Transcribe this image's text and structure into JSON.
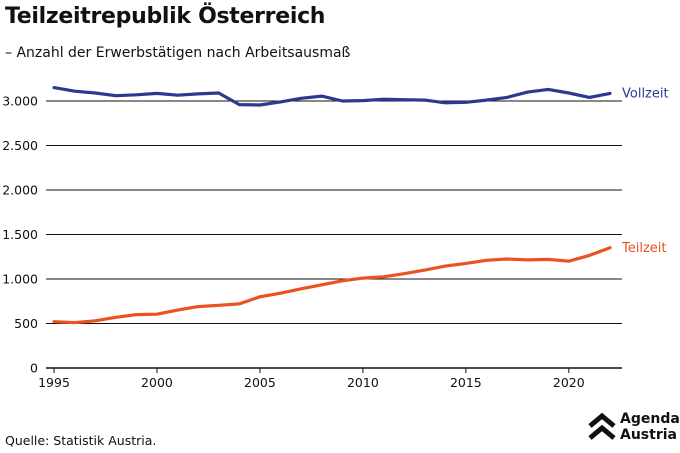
{
  "title": "Teilzeitrepublik Österreich",
  "subtitle": "– Anzahl der Erwerbstätigen nach Arbeitsausmaß",
  "source": "Quelle: Statistik Austria.",
  "logo": {
    "line1": "Agenda",
    "line2": "Austria"
  },
  "colors": {
    "vollzeit": "#2b3990",
    "teilzeit": "#e8531f",
    "grid": "#111111"
  },
  "chart_data": {
    "type": "line",
    "x": [
      1995,
      1996,
      1997,
      1998,
      1999,
      2000,
      2001,
      2002,
      2003,
      2004,
      2005,
      2006,
      2007,
      2008,
      2009,
      2010,
      2011,
      2012,
      2013,
      2014,
      2015,
      2016,
      2017,
      2018,
      2019,
      2020,
      2021,
      2022
    ],
    "series": [
      {
        "name": "Vollzeit",
        "values": [
          3150,
          3110,
          3090,
          3060,
          3070,
          3085,
          3065,
          3080,
          3090,
          2960,
          2955,
          2990,
          3030,
          3055,
          3000,
          3005,
          3020,
          3015,
          3010,
          2980,
          2985,
          3010,
          3040,
          3100,
          3130,
          3090,
          3040,
          3085
        ]
      },
      {
        "name": "Teilzeit",
        "values": [
          520,
          510,
          530,
          570,
          600,
          605,
          650,
          690,
          705,
          720,
          800,
          840,
          890,
          935,
          980,
          1010,
          1025,
          1060,
          1100,
          1145,
          1175,
          1210,
          1225,
          1215,
          1220,
          1200,
          1265,
          1350
        ]
      }
    ],
    "yticks": [
      0,
      500,
      1000,
      1500,
      2000,
      2500,
      3000
    ],
    "ytick_labels": [
      "0",
      "500",
      "1.000",
      "1.500",
      "2.000",
      "2.500",
      "3.000"
    ],
    "xticks": [
      1995,
      2000,
      2005,
      2010,
      2015,
      2020
    ],
    "xtick_labels": [
      "1995",
      "2000",
      "2005",
      "2010",
      "2015",
      "2020"
    ],
    "ylim": [
      0,
      3000
    ],
    "xlim": [
      1995,
      2022
    ],
    "grid": true,
    "legend": "inline-right"
  }
}
